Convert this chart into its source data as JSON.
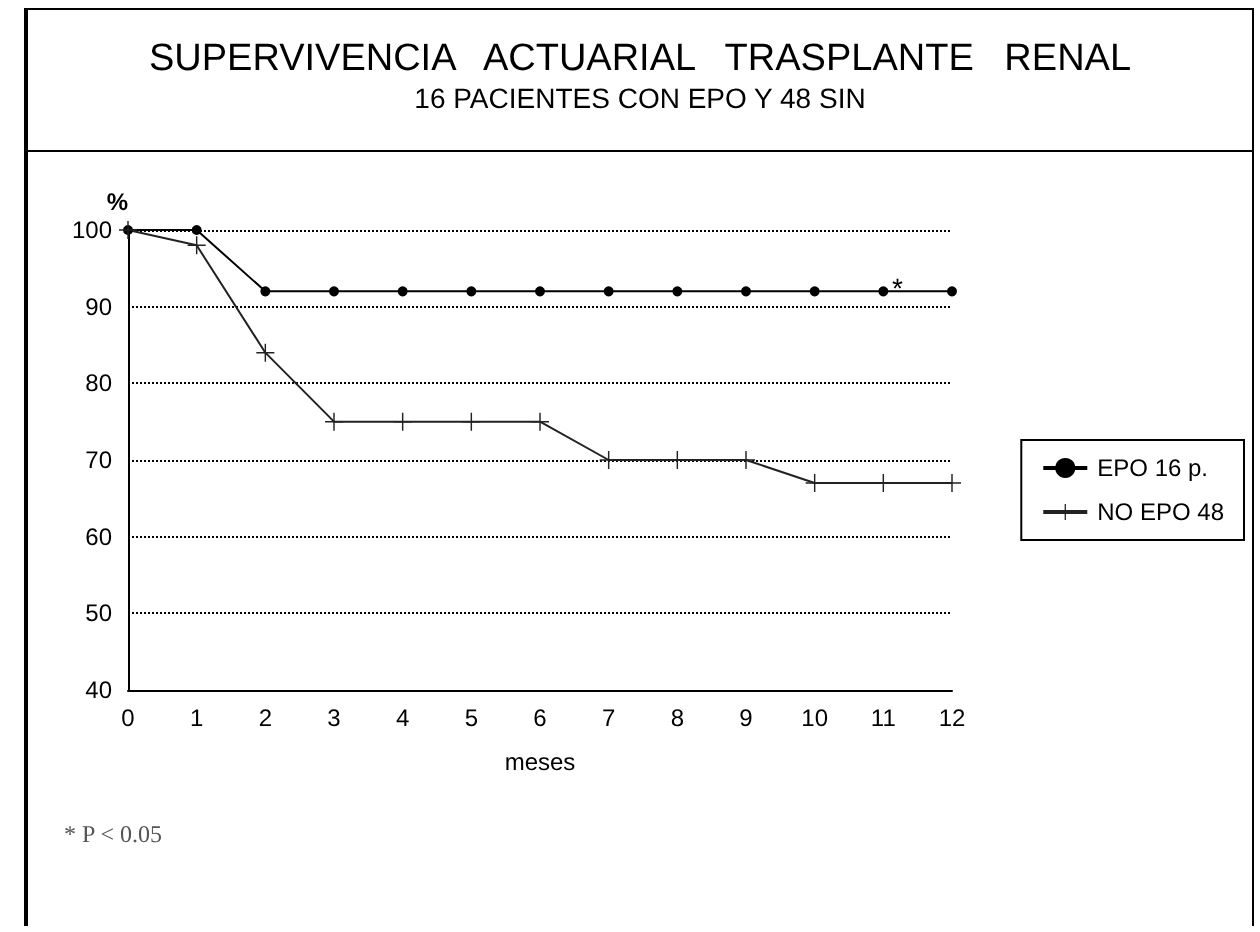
{
  "chart_data": {
    "type": "line",
    "title": "SUPERVIVENCIA ACTUARIAL TRASPLANTE RENAL",
    "subtitle": "16 PACIENTES CON EPO Y 48 SIN",
    "xlabel": "meses",
    "ylabel": "%",
    "x": [
      0,
      1,
      2,
      3,
      4,
      5,
      6,
      7,
      8,
      9,
      10,
      11,
      12
    ],
    "series": [
      {
        "name": "EPO 16 p.",
        "color": "#000000",
        "marker": "circle",
        "values": [
          100,
          100,
          92,
          92,
          92,
          92,
          92,
          92,
          92,
          92,
          92,
          92,
          92
        ]
      },
      {
        "name": "NO EPO 48",
        "color": "#222222",
        "marker": "cross",
        "values": [
          100,
          98,
          84,
          75,
          75,
          75,
          75,
          70,
          70,
          70,
          67,
          67,
          67
        ]
      }
    ],
    "xlim": [
      0,
      12
    ],
    "xticks": [
      0,
      1,
      2,
      3,
      4,
      5,
      6,
      7,
      8,
      9,
      10,
      11,
      12
    ],
    "ylim": [
      40,
      100
    ],
    "yticks": [
      40,
      50,
      60,
      70,
      80,
      90,
      100
    ],
    "grid": "y",
    "legend": "right",
    "line_style": "solid",
    "annotations": [
      "*",
      "* P < 0.05"
    ]
  }
}
